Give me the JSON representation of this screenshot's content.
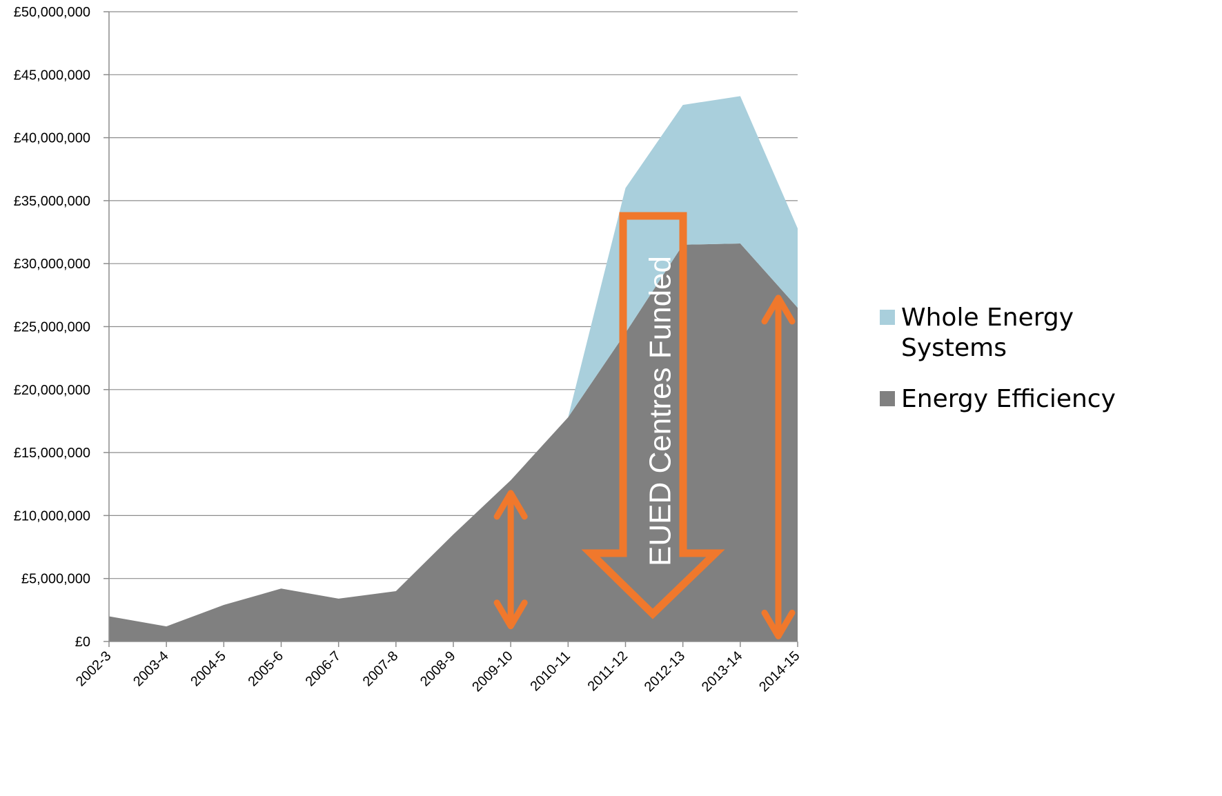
{
  "chart_data": {
    "type": "area",
    "stacked": true,
    "categories": [
      "2002-3",
      "2003-4",
      "2004-5",
      "2005-6",
      "2006-7",
      "2007-8",
      "2008-9",
      "2009-10",
      "2010-11",
      "2011-12",
      "2012-13",
      "2013-14",
      "2014-15"
    ],
    "series": [
      {
        "name": "Energy Efficiency",
        "color": "#808080",
        "values": [
          2000000,
          1200000,
          2900000,
          4200000,
          3400000,
          4000000,
          8500000,
          12800000,
          17800000,
          24500000,
          31500000,
          31600000,
          26500000
        ]
      },
      {
        "name": "Whole Energy Systems",
        "color": "#a9cfdc",
        "values": [
          0,
          0,
          0,
          0,
          0,
          0,
          0,
          0,
          0,
          11500000,
          11100000,
          11700000,
          6300000
        ]
      }
    ],
    "legend_entries": [
      {
        "label_line1": "Whole Energy",
        "label_line2": "Systems",
        "color": "#a9cfdc"
      },
      {
        "label_line1": "Energy Efficiency",
        "label_line2": "",
        "color": "#808080"
      }
    ],
    "legend_position": "right",
    "ylim": [
      0,
      50000000
    ],
    "yticks": [
      0,
      5000000,
      10000000,
      15000000,
      20000000,
      25000000,
      30000000,
      35000000,
      40000000,
      45000000,
      50000000
    ],
    "ytick_labels": [
      "£0",
      "£5,000,000",
      "£10,000,000",
      "£15,000,000",
      "£20,000,000",
      "£25,000,000",
      "£30,000,000",
      "£35,000,000",
      "£40,000,000",
      "£45,000,000",
      "£50,000,000"
    ],
    "grid": true,
    "title": "",
    "xlabel": "",
    "ylabel": "",
    "annotations": {
      "text": "EUED Centres Funded",
      "arrow_color": "#f0782c",
      "double_arrows": [
        {
          "category": "2009-10",
          "y_top": 12000000,
          "y_bottom": 1000000
        },
        {
          "category": "2014-15",
          "y_top": 27500000,
          "y_bottom": 200000
        }
      ]
    }
  }
}
